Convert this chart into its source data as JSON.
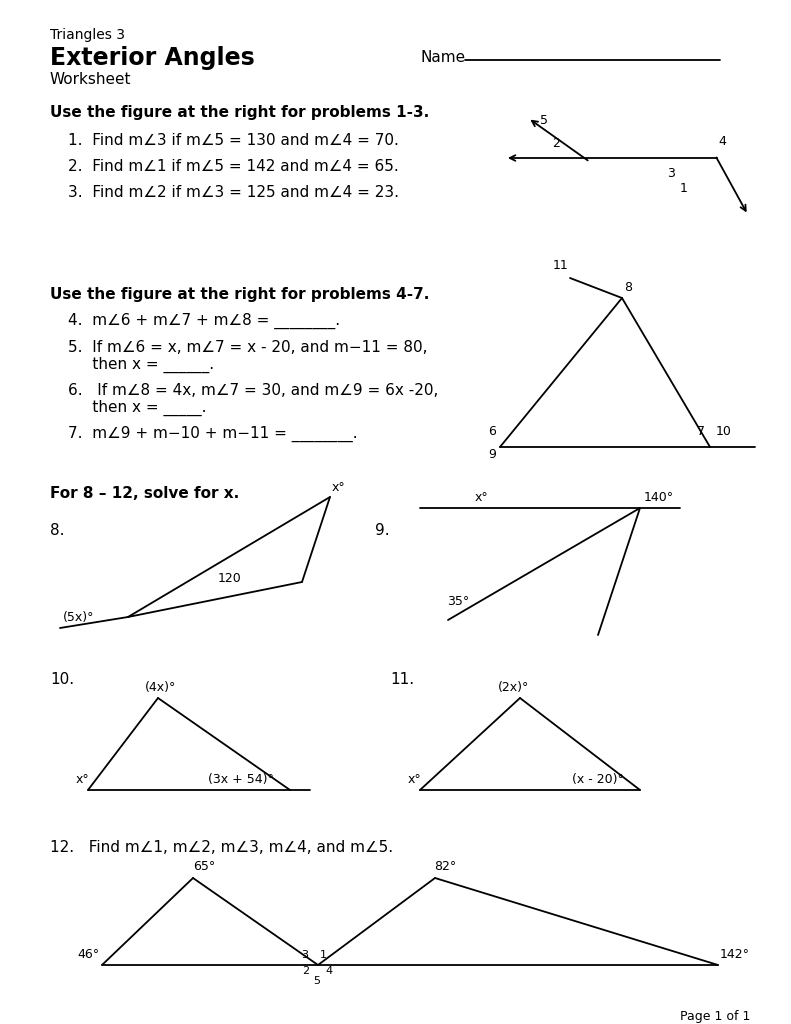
{
  "bg_color": "#ffffff",
  "title_small": "Triangles 3",
  "title_large": "Exterior Angles",
  "title_sub": "Worksheet",
  "section1_header": "Use the figure at the right for problems 1-3.",
  "section1_problems": [
    "1.  Find m∠3 if m∠5 = 130 and m∠4 = 70.",
    "2.  Find m∠1 if m∠5 = 142 and m∠4 = 65.",
    "3.  Find m∠2 if m∠3 = 125 and m∠4 = 23."
  ],
  "section2_header": "Use the figure at the right for problems 4-7.",
  "section2_p4": "4.  m∠6 + m∠7 + m∠8 = ________.",
  "section2_p5a": "5.  If m∠6 = x, m∠7 = x - 20, and m−11 = 80,",
  "section2_p5b": "     then x = ______.",
  "section2_p6a": "6.   If m∠8 = 4x, m∠7 = 30, and m∠9 = 6x -20,",
  "section2_p6b": "     then x = _____.",
  "section2_p7": "7.  m∠9 + m−10 + m−11 = ________.",
  "section3_header": "For 8 – 12, solve for x.",
  "page_label": "Page 1 of 1"
}
